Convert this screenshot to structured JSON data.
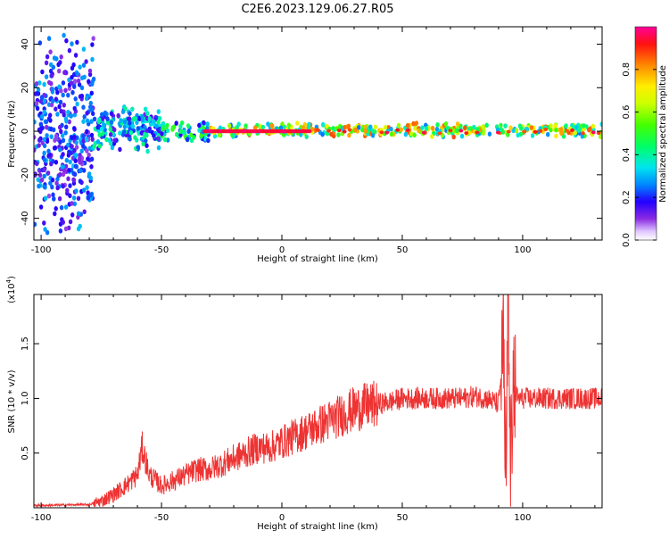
{
  "title": "C2E6.2023.129.06.27.R05",
  "chart_data": [
    {
      "type": "heatmap",
      "xlabel": "Height of straight line (km)",
      "ylabel": "Frequency (Hz)",
      "xlim": [
        -103,
        133
      ],
      "ylim": [
        -50,
        48
      ],
      "xticks": [
        -100,
        -50,
        0,
        50,
        100
      ],
      "yticks": [
        -40,
        -20,
        0,
        20,
        40
      ],
      "colorbar": {
        "label": "Normalized spectral amplitude",
        "range": [
          0.0,
          1.0
        ],
        "ticks": [
          0.0,
          0.2,
          0.4,
          0.6,
          0.8
        ],
        "tick_labels": [
          "0.0",
          "0.2",
          "0.4",
          "0.6",
          "0.8"
        ]
      },
      "regions": [
        {
          "x": [
            -103,
            -78
          ],
          "freq_spread": [
            -50,
            48
          ],
          "amplitude": 0.25
        },
        {
          "x": [
            -78,
            -50
          ],
          "freq_spread": [
            -10,
            12
          ],
          "amplitude": 0.35
        },
        {
          "x": [
            -50,
            -30
          ],
          "freq_spread": [
            -6,
            5
          ],
          "amplitude": 0.45
        },
        {
          "x": [
            -30,
            133
          ],
          "freq_spread": [
            -3,
            4
          ],
          "amplitude": 0.7
        }
      ],
      "peak_band": {
        "x": [
          -32,
          12
        ],
        "freq": 0,
        "amplitude": 1.0
      }
    },
    {
      "type": "line",
      "xlabel": "Height of straight line (km)",
      "ylabel": "SNR (10 * v/v)",
      "y_multiplier": "(x10",
      "y_multiplier_exp": "4",
      "y_multiplier_close": ")",
      "xlim": [
        -103,
        133
      ],
      "ylim": [
        0,
        1.95
      ],
      "xticks": [
        -100,
        -50,
        0,
        50,
        100
      ],
      "yticks": [
        0.5,
        1.0,
        1.5
      ],
      "ytick_labels": [
        "0.5",
        "1.0",
        "1.5"
      ],
      "color": "#ee3333",
      "series": [
        {
          "x": [
            -103,
            -80,
            -75,
            -70,
            -65,
            -60,
            -58,
            -55,
            -50,
            -45,
            -40,
            -35,
            -30,
            -25,
            -20,
            -15,
            -10,
            -5,
            0,
            5,
            10,
            15,
            20,
            25,
            30,
            35,
            40,
            45,
            50,
            55,
            60,
            65,
            70,
            75,
            80,
            85,
            90,
            92,
            93,
            94,
            95,
            96,
            98,
            100,
            110,
            120,
            133
          ],
          "y": [
            0.02,
            0.03,
            0.06,
            0.12,
            0.2,
            0.3,
            0.55,
            0.3,
            0.2,
            0.25,
            0.3,
            0.35,
            0.35,
            0.4,
            0.45,
            0.5,
            0.55,
            0.55,
            0.6,
            0.65,
            0.7,
            0.75,
            0.8,
            0.85,
            0.9,
            0.93,
            0.95,
            0.97,
            1.0,
            1.0,
            1.0,
            1.0,
            1.0,
            1.0,
            1.02,
            1.0,
            0.95,
            1.5,
            0.4,
            1.9,
            0.3,
            1.1,
            1.0,
            1.0,
            1.0,
            1.0,
            1.0
          ]
        }
      ]
    }
  ]
}
